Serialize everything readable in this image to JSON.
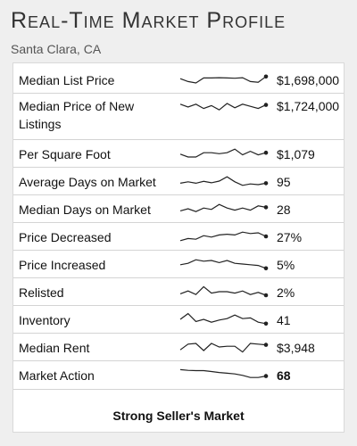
{
  "header": {
    "title": "Real-Time Market Profile",
    "location": "Santa Clara, CA"
  },
  "rows": [
    {
      "label": "Median List Price",
      "value": "$1,698,000",
      "bold": false,
      "spark": [
        0.55,
        0.35,
        0.25,
        0.6,
        0.6,
        0.62,
        0.6,
        0.58,
        0.62,
        0.35,
        0.3,
        0.7
      ]
    },
    {
      "label": "Median Price of New Listings",
      "value": "$1,724,000",
      "bold": false,
      "spark": [
        0.7,
        0.5,
        0.7,
        0.4,
        0.6,
        0.3,
        0.75,
        0.45,
        0.7,
        0.55,
        0.4,
        0.65
      ]
    },
    {
      "label": "Per Square Foot",
      "value": "$1,079",
      "bold": false,
      "spark": [
        0.45,
        0.25,
        0.25,
        0.55,
        0.55,
        0.48,
        0.55,
        0.8,
        0.4,
        0.65,
        0.4,
        0.55
      ]
    },
    {
      "label": "Average Days on Market",
      "value": "95",
      "bold": false,
      "spark": [
        0.35,
        0.45,
        0.35,
        0.48,
        0.38,
        0.5,
        0.8,
        0.45,
        0.2,
        0.3,
        0.25,
        0.35
      ]
    },
    {
      "label": "Median Days on Market",
      "value": "28",
      "bold": false,
      "spark": [
        0.35,
        0.5,
        0.3,
        0.55,
        0.45,
        0.8,
        0.55,
        0.4,
        0.55,
        0.4,
        0.7,
        0.6
      ]
    },
    {
      "label": "Price Decreased",
      "value": "27%",
      "bold": false,
      "spark": [
        0.2,
        0.35,
        0.3,
        0.55,
        0.45,
        0.6,
        0.65,
        0.6,
        0.8,
        0.7,
        0.75,
        0.5
      ]
    },
    {
      "label": "Price Increased",
      "value": "5%",
      "bold": false,
      "spark": [
        0.45,
        0.55,
        0.8,
        0.7,
        0.75,
        0.6,
        0.75,
        0.55,
        0.5,
        0.45,
        0.4,
        0.2
      ]
    },
    {
      "label": "Relisted",
      "value": "2%",
      "bold": false,
      "spark": [
        0.35,
        0.55,
        0.3,
        0.85,
        0.4,
        0.5,
        0.5,
        0.4,
        0.55,
        0.3,
        0.45,
        0.25
      ]
    },
    {
      "label": "Inventory",
      "value": "41",
      "bold": false,
      "spark": [
        0.5,
        0.9,
        0.35,
        0.5,
        0.3,
        0.45,
        0.55,
        0.8,
        0.55,
        0.6,
        0.3,
        0.2
      ]
    },
    {
      "label": "Median Rent",
      "value": "$3,948",
      "bold": false,
      "spark": [
        0.3,
        0.7,
        0.75,
        0.25,
        0.75,
        0.5,
        0.55,
        0.55,
        0.15,
        0.75,
        0.7,
        0.65
      ]
    },
    {
      "label": "Market Action",
      "value": "68",
      "bold": true,
      "spark": [
        0.85,
        0.8,
        0.78,
        0.78,
        0.72,
        0.65,
        0.6,
        0.55,
        0.45,
        0.3,
        0.3,
        0.4
      ]
    }
  ],
  "footer": {
    "summary": "Strong Seller's Market"
  },
  "colors": {
    "page_background": "#efefef",
    "card_background": "#ffffff",
    "spark_line": "#222222",
    "divider": "#d4d4d4"
  }
}
